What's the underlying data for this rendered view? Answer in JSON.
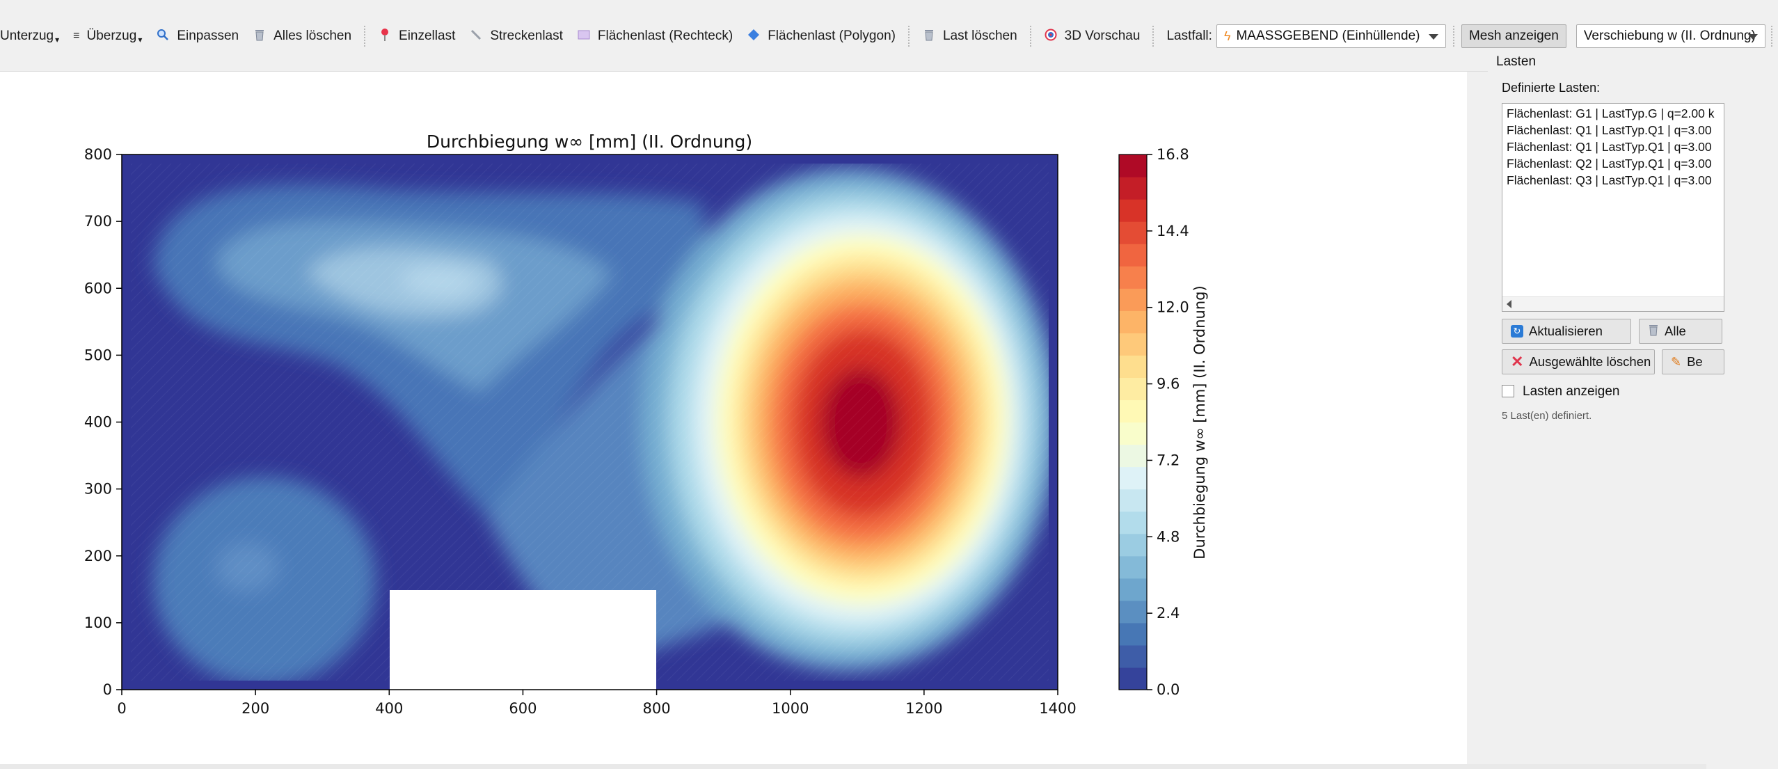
{
  "toolbar": {
    "unterzug": "Unterzug",
    "ueberzug": "Überzug",
    "einpassen": "Einpassen",
    "alles_loeschen": "Alles löschen",
    "einzellast": "Einzellast",
    "streckenlast": "Streckenlast",
    "flaechenlast_rechteck": "Flächenlast (Rechteck)",
    "flaechenlast_polygon": "Flächenlast (Polygon)",
    "last_loeschen": "Last löschen",
    "vorschau_3d": "3D Vorschau",
    "lastfall_label": "Lastfall:",
    "lastfall_value": "MAASSGEBEND (Einhüllende)",
    "mesh_anzeigen": "Mesh anzeigen",
    "result_value": "Verschiebung w (II. Ordnung)"
  },
  "icons": {
    "einpassen": "magnifier-icon",
    "alles_loeschen": "trash-icon",
    "einzellast": "pin-icon",
    "streckenlast": "line-load-icon",
    "flaechenlast_rechteck": "rectangle-load-icon",
    "flaechenlast_polygon": "polygon-load-icon",
    "last_loeschen": "trash-icon",
    "vorschau_3d": "target-3d-icon",
    "lastfall": "lightning-icon"
  },
  "panel": {
    "title": "Lasten",
    "list_label": "Definierte Lasten:",
    "loads": [
      "Flächenlast: G1 | LastTyp.G | q=2.00 k",
      "Flächenlast: Q1 | LastTyp.Q1 | q=3.00",
      "Flächenlast: Q1 | LastTyp.Q1 | q=3.00",
      "Flächenlast: Q2 | LastTyp.Q1 | q=3.00",
      "Flächenlast: Q3 | LastTyp.Q1 | q=3.00"
    ],
    "btn_refresh": "Aktualisieren",
    "btn_all": "Alle",
    "btn_delete_selected": "Ausgewählte löschen",
    "btn_edit": "Be",
    "show_loads_label": "Lasten anzeigen",
    "show_loads_checked": false,
    "status": "5 Last(en) definiert."
  },
  "chart_data": {
    "type": "heatmap",
    "title": "Durchbiegung w∞ [mm] (II. Ordnung)",
    "xlabel": "",
    "ylabel": "",
    "colorbar_label": "Durchbiegung w∞ [mm] (II. Ordnung)",
    "xlim": [
      0,
      1400
    ],
    "ylim": [
      0,
      800
    ],
    "xticks": [
      "0",
      "200",
      "400",
      "600",
      "800",
      "1000",
      "1200",
      "1400"
    ],
    "yticks": [
      "0",
      "100",
      "200",
      "300",
      "400",
      "500",
      "600",
      "700",
      "800"
    ],
    "colorbar_ticks": [
      "0.0",
      "2.4",
      "4.8",
      "7.2",
      "9.6",
      "12.0",
      "14.4",
      "16.8"
    ],
    "value_range": [
      0.0,
      16.8
    ],
    "levels": 24,
    "opening": {
      "x": [
        400,
        800
      ],
      "y": [
        0,
        150
      ]
    },
    "peak": {
      "x": 1110,
      "y": 390,
      "value": 16.8
    },
    "colormap": [
      "#313695",
      "#4575b4",
      "#74add1",
      "#abd9e9",
      "#e0f3f8",
      "#ffffbf",
      "#fee090",
      "#fdae61",
      "#f46d43",
      "#d73027",
      "#a50026"
    ]
  }
}
